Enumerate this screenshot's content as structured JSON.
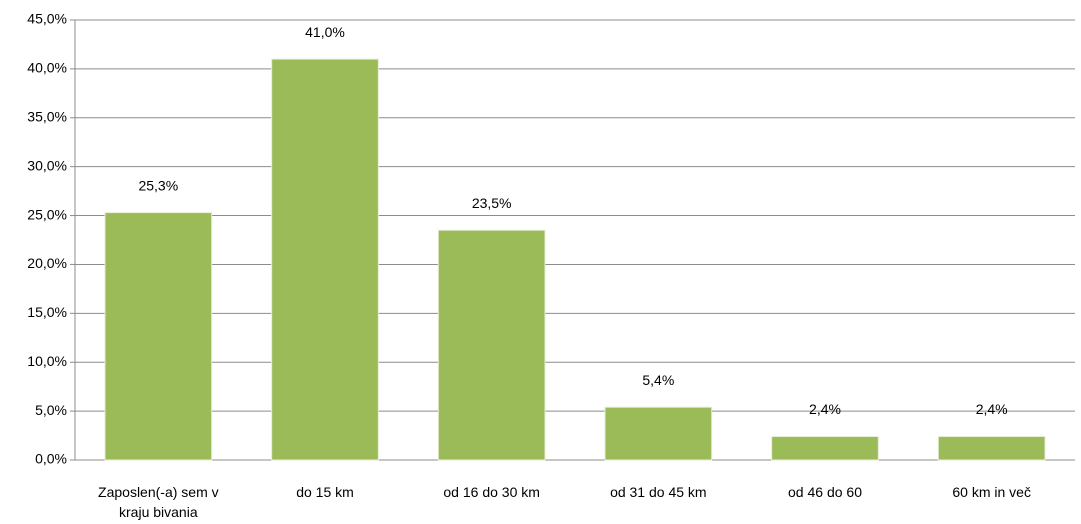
{
  "chart_data": {
    "type": "bar",
    "categories": [
      "Zaposlen(-a) sem v kraju bivania",
      "do 15 km",
      "od 16 do 30 km",
      "od 31 do 45 km",
      "od 46 do 60",
      "60 km in več"
    ],
    "values": [
      25.3,
      41.0,
      23.5,
      5.4,
      2.4,
      2.4
    ],
    "value_labels": [
      "25,3%",
      "41,0%",
      "23,5%",
      "5,4%",
      "2,4%",
      "2,4%"
    ],
    "color": "#9bbb59",
    "ylim": [
      0,
      45
    ],
    "yticks": [
      {
        "value": 0,
        "label": "0,0%"
      },
      {
        "value": 5,
        "label": "5,0%"
      },
      {
        "value": 10,
        "label": "10,0%"
      },
      {
        "value": 15,
        "label": "15,0%"
      },
      {
        "value": 20,
        "label": "20,0%"
      },
      {
        "value": 25,
        "label": "25,0%"
      },
      {
        "value": 30,
        "label": "30,0%"
      },
      {
        "value": 35,
        "label": "35,0%"
      },
      {
        "value": 40,
        "label": "40,0%"
      },
      {
        "value": 45,
        "label": "45,0%"
      }
    ],
    "grid": true
  }
}
